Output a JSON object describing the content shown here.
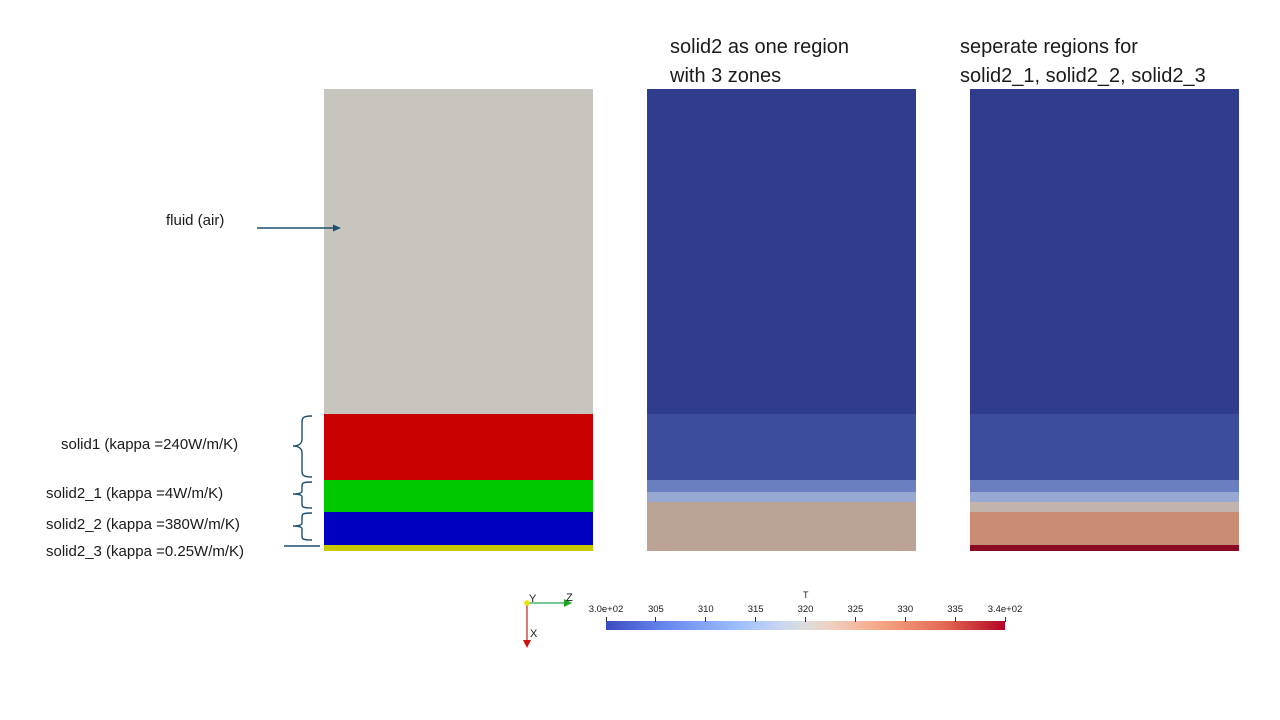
{
  "headings": {
    "middle": [
      "solid2 as one region",
      "with 3 zones"
    ],
    "right": [
      "seperate regions for",
      "solid2_1, solid2_2, solid2_3"
    ]
  },
  "labels": {
    "fluid": "fluid (air)",
    "solid1": "solid1 (kappa =240W/m/K)",
    "solid2_1": "solid2_1 (kappa =4W/m/K)",
    "solid2_2": "solid2_2 (kappa =380W/m/K)",
    "solid2_3": "solid2_3 (kappa =0.25W/m/K)"
  },
  "colors": {
    "fluid": "#c8c5be",
    "solid1": "#c80000",
    "solid2_1": "#00c800",
    "solid2_2": "#0000c0",
    "solid2_3": "#c8c800",
    "arrow": "#1f4e6e"
  },
  "axes_triad": {
    "y": "Y",
    "z": "Z",
    "x": "X"
  },
  "colorbar": {
    "title": "T",
    "ticks": [
      "3.0e+02",
      "305",
      "310",
      "315",
      "320",
      "325",
      "330",
      "335",
      "3.4e+02"
    ],
    "range": [
      300,
      340
    ],
    "colormap": "Cool to Warm"
  }
}
